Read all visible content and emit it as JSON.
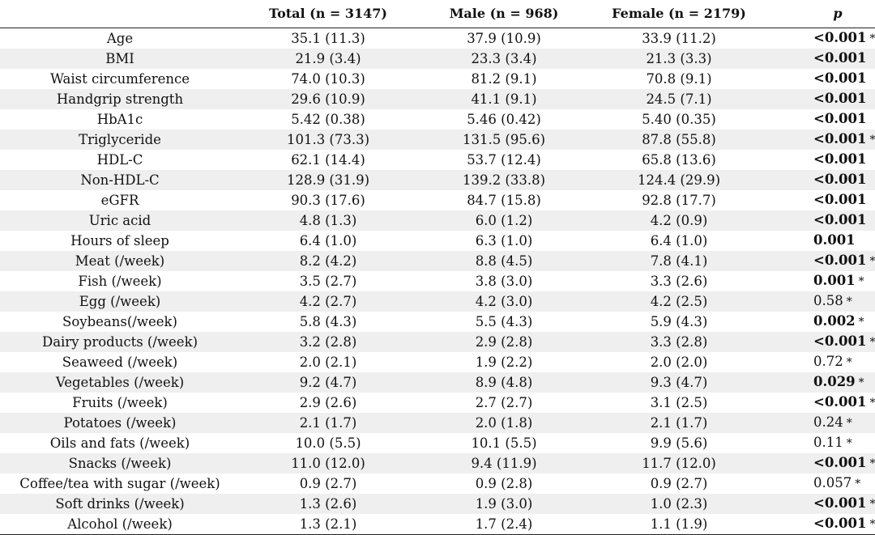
{
  "table": {
    "headers": [
      "",
      "Total (n = 3147)",
      "Male (n = 968)",
      "Female (n = 2179)",
      "p"
    ],
    "rows": [
      {
        "label": "Age",
        "total": "35.1 (11.3)",
        "male": "37.9 (10.9)",
        "female": "33.9 (11.2)",
        "p": "<0.001",
        "bold": true,
        "star": "*"
      },
      {
        "label": "BMI",
        "total": "21.9 (3.4)",
        "male": "23.3 (3.4)",
        "female": "21.3 (3.3)",
        "p": "<0.001",
        "bold": true,
        "star": ""
      },
      {
        "label": "Waist circumference",
        "total": "74.0 (10.3)",
        "male": "81.2 (9.1)",
        "female": "70.8 (9.1)",
        "p": "<0.001",
        "bold": true,
        "star": ""
      },
      {
        "label": "Handgrip strength",
        "total": "29.6 (10.9)",
        "male": "41.1 (9.1)",
        "female": "24.5 (7.1)",
        "p": "<0.001",
        "bold": true,
        "star": ""
      },
      {
        "label": "HbA1c",
        "total": "5.42 (0.38)",
        "male": "5.46 (0.42)",
        "female": "5.40 (0.35)",
        "p": "<0.001",
        "bold": true,
        "star": ""
      },
      {
        "label": "Triglyceride",
        "total": "101.3 (73.3)",
        "male": "131.5 (95.6)",
        "female": "87.8 (55.8)",
        "p": "<0.001",
        "bold": true,
        "star": "*"
      },
      {
        "label": "HDL-C",
        "total": "62.1 (14.4)",
        "male": "53.7 (12.4)",
        "female": "65.8 (13.6)",
        "p": "<0.001",
        "bold": true,
        "star": ""
      },
      {
        "label": "Non-HDL-C",
        "total": "128.9 (31.9)",
        "male": "139.2 (33.8)",
        "female": "124.4 (29.9)",
        "p": "<0.001",
        "bold": true,
        "star": ""
      },
      {
        "label": "eGFR",
        "total": "90.3 (17.6)",
        "male": "84.7 (15.8)",
        "female": "92.8 (17.7)",
        "p": "<0.001",
        "bold": true,
        "star": ""
      },
      {
        "label": "Uric acid",
        "total": "4.8 (1.3)",
        "male": "6.0 (1.2)",
        "female": "4.2 (0.9)",
        "p": "<0.001",
        "bold": true,
        "star": ""
      },
      {
        "label": "Hours of sleep",
        "total": "6.4 (1.0)",
        "male": "6.3 (1.0)",
        "female": "6.4 (1.0)",
        "p": "0.001",
        "bold": true,
        "star": ""
      },
      {
        "label": "Meat (/week)",
        "total": "8.2 (4.2)",
        "male": "8.8 (4.5)",
        "female": "7.8 (4.1)",
        "p": "<0.001",
        "bold": true,
        "star": "*"
      },
      {
        "label": "Fish (/week)",
        "total": "3.5 (2.7)",
        "male": "3.8 (3.0)",
        "female": "3.3 (2.6)",
        "p": "0.001",
        "bold": true,
        "star": "*"
      },
      {
        "label": "Egg (/week)",
        "total": "4.2 (2.7)",
        "male": "4.2 (3.0)",
        "female": "4.2 (2.5)",
        "p": "0.58",
        "bold": false,
        "star": "*"
      },
      {
        "label": "Soybeans(/week)",
        "total": "5.8 (4.3)",
        "male": "5.5 (4.3)",
        "female": "5.9 (4.3)",
        "p": "0.002",
        "bold": true,
        "star": "*"
      },
      {
        "label": "Dairy products (/week)",
        "total": "3.2 (2.8)",
        "male": "2.9 (2.8)",
        "female": "3.3 (2.8)",
        "p": "<0.001",
        "bold": true,
        "star": "*"
      },
      {
        "label": "Seaweed (/week)",
        "total": "2.0 (2.1)",
        "male": "1.9 (2.2)",
        "female": "2.0 (2.0)",
        "p": "0.72",
        "bold": false,
        "star": "*"
      },
      {
        "label": "Vegetables (/week)",
        "total": "9.2 (4.7)",
        "male": "8.9 (4.8)",
        "female": "9.3 (4.7)",
        "p": "0.029",
        "bold": true,
        "star": "*"
      },
      {
        "label": "Fruits (/week)",
        "total": "2.9 (2.6)",
        "male": "2.7 (2.7)",
        "female": "3.1 (2.5)",
        "p": "<0.001",
        "bold": true,
        "star": "*"
      },
      {
        "label": "Potatoes (/week)",
        "total": "2.1 (1.7)",
        "male": "2.0 (1.8)",
        "female": "2.1 (1.7)",
        "p": "0.24",
        "bold": false,
        "star": "*"
      },
      {
        "label": "Oils and fats (/week)",
        "total": "10.0 (5.5)",
        "male": "10.1 (5.5)",
        "female": "9.9 (5.6)",
        "p": "0.11",
        "bold": false,
        "star": "*"
      },
      {
        "label": "Snacks (/week)",
        "total": "11.0 (12.0)",
        "male": "9.4 (11.9)",
        "female": "11.7 (12.0)",
        "p": "<0.001",
        "bold": true,
        "star": "*"
      },
      {
        "label": "Coffee/tea with sugar (/week)",
        "total": "0.9 (2.7)",
        "male": "0.9 (2.8)",
        "female": "0.9 (2.7)",
        "p": "0.057",
        "bold": false,
        "star": "*"
      },
      {
        "label": "Soft drinks (/week)",
        "total": "1.3 (2.6)",
        "male": "1.9 (3.0)",
        "female": "1.0 (2.3)",
        "p": "<0.001",
        "bold": true,
        "star": "*"
      },
      {
        "label": "Alcohol (/week)",
        "total": "1.3 (2.1)",
        "male": "1.7 (2.4)",
        "female": "1.1 (1.9)",
        "p": "<0.001",
        "bold": true,
        "star": "*"
      }
    ]
  }
}
